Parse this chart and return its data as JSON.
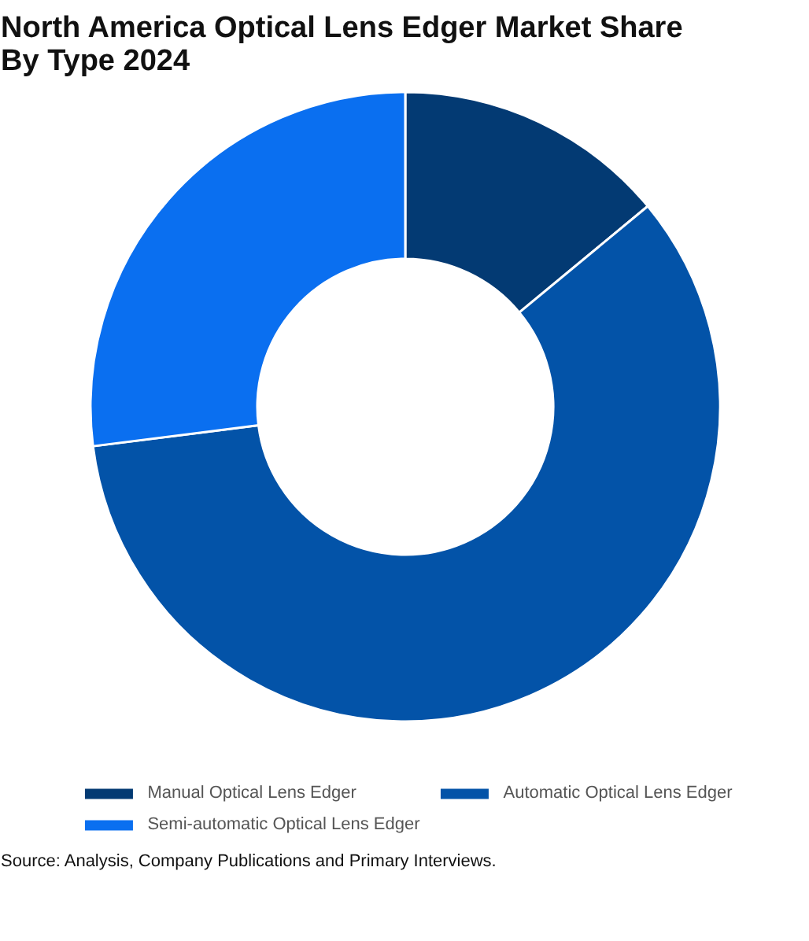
{
  "chart_data": {
    "type": "donut",
    "title": "North America Optical Lens Edger Market Share By Type 2024",
    "categories": [
      "Manual Optical Lens Edger",
      "Automatic Optical Lens Edger",
      "Semi-automatic Optical Lens Edger"
    ],
    "values": [
      14,
      59,
      27
    ],
    "colors": [
      "#033a73",
      "#0353a8",
      "#0a6ff0"
    ],
    "legend": "bottom",
    "annotations": [
      "Source: Analysis, Company Publications and Primary Interviews."
    ]
  }
}
